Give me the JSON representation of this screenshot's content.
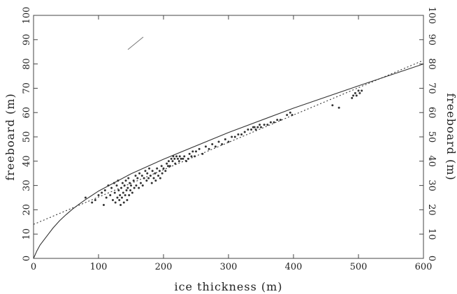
{
  "chart_data": {
    "type": "scatter",
    "title": "",
    "xlabel": "ice thickness (m)",
    "ylabel": "freeboard (m)",
    "ylabel_right": "freeboard (m)",
    "xlim": [
      0,
      600
    ],
    "ylim": [
      0,
      100
    ],
    "x_ticks": [
      0,
      100,
      200,
      300,
      400,
      500,
      600
    ],
    "y_ticks": [
      0,
      10,
      20,
      30,
      40,
      50,
      60,
      70,
      80,
      90,
      100
    ],
    "grid": false,
    "legend": "none",
    "series": [
      {
        "style": "scatter",
        "color": "#333333",
        "points": [
          [
            80,
            25
          ],
          [
            90,
            23
          ],
          [
            95,
            24
          ],
          [
            100,
            26
          ],
          [
            105,
            27
          ],
          [
            108,
            22
          ],
          [
            110,
            28
          ],
          [
            112,
            25
          ],
          [
            115,
            30
          ],
          [
            118,
            26
          ],
          [
            120,
            29
          ],
          [
            122,
            24
          ],
          [
            124,
            31
          ],
          [
            125,
            27
          ],
          [
            126,
            23
          ],
          [
            128,
            30
          ],
          [
            129,
            25
          ],
          [
            130,
            32
          ],
          [
            131,
            28
          ],
          [
            132,
            24
          ],
          [
            133,
            26
          ],
          [
            134,
            22
          ],
          [
            135,
            29
          ],
          [
            136,
            25
          ],
          [
            137,
            31
          ],
          [
            138,
            27
          ],
          [
            139,
            23
          ],
          [
            140,
            30
          ],
          [
            141,
            26
          ],
          [
            142,
            32
          ],
          [
            143,
            28
          ],
          [
            144,
            24
          ],
          [
            145,
            29
          ],
          [
            146,
            33
          ],
          [
            147,
            26
          ],
          [
            148,
            31
          ],
          [
            149,
            28
          ],
          [
            150,
            30
          ],
          [
            152,
            27
          ],
          [
            154,
            32
          ],
          [
            155,
            29
          ],
          [
            157,
            34
          ],
          [
            158,
            30
          ],
          [
            160,
            33
          ],
          [
            162,
            29
          ],
          [
            163,
            35
          ],
          [
            165,
            31
          ],
          [
            167,
            34
          ],
          [
            168,
            30
          ],
          [
            170,
            33
          ],
          [
            172,
            36
          ],
          [
            174,
            32
          ],
          [
            175,
            35
          ],
          [
            177,
            33
          ],
          [
            178,
            37
          ],
          [
            180,
            34
          ],
          [
            182,
            31
          ],
          [
            183,
            36
          ],
          [
            185,
            33
          ],
          [
            187,
            35
          ],
          [
            188,
            32
          ],
          [
            190,
            37
          ],
          [
            192,
            34
          ],
          [
            194,
            36
          ],
          [
            195,
            33
          ],
          [
            197,
            38
          ],
          [
            198,
            35
          ],
          [
            200,
            37
          ],
          [
            203,
            36
          ],
          [
            205,
            39
          ],
          [
            207,
            38
          ],
          [
            208,
            40
          ],
          [
            210,
            38
          ],
          [
            212,
            41
          ],
          [
            214,
            40
          ],
          [
            215,
            42
          ],
          [
            217,
            41
          ],
          [
            218,
            39
          ],
          [
            220,
            42
          ],
          [
            222,
            41
          ],
          [
            224,
            40
          ],
          [
            225,
            42
          ],
          [
            227,
            41
          ],
          [
            230,
            41
          ],
          [
            232,
            42
          ],
          [
            235,
            40
          ],
          [
            238,
            41
          ],
          [
            240,
            43
          ],
          [
            243,
            42
          ],
          [
            245,
            44
          ],
          [
            248,
            42
          ],
          [
            250,
            44
          ],
          [
            255,
            45
          ],
          [
            260,
            43
          ],
          [
            265,
            46
          ],
          [
            270,
            45
          ],
          [
            275,
            47
          ],
          [
            280,
            46
          ],
          [
            285,
            48
          ],
          [
            290,
            47
          ],
          [
            295,
            49
          ],
          [
            300,
            48
          ],
          [
            305,
            50
          ],
          [
            310,
            50
          ],
          [
            315,
            51
          ],
          [
            320,
            51
          ],
          [
            325,
            52
          ],
          [
            330,
            53
          ],
          [
            335,
            53
          ],
          [
            338,
            54
          ],
          [
            340,
            54
          ],
          [
            342,
            53
          ],
          [
            345,
            54
          ],
          [
            348,
            55
          ],
          [
            350,
            54
          ],
          [
            355,
            55
          ],
          [
            360,
            55
          ],
          [
            365,
            56
          ],
          [
            370,
            56
          ],
          [
            375,
            57
          ],
          [
            380,
            57
          ],
          [
            390,
            59
          ],
          [
            395,
            60
          ],
          [
            398,
            59
          ],
          [
            460,
            63
          ],
          [
            470,
            62
          ],
          [
            490,
            66
          ],
          [
            492,
            67
          ],
          [
            495,
            68
          ],
          [
            497,
            67
          ],
          [
            500,
            69
          ],
          [
            502,
            68
          ],
          [
            505,
            69
          ]
        ]
      },
      {
        "style": "solid-line",
        "color": "#333333",
        "points": [
          [
            0,
            0
          ],
          [
            5,
            3
          ],
          [
            10,
            5.5
          ],
          [
            20,
            9
          ],
          [
            30,
            12.5
          ],
          [
            40,
            15.5
          ],
          [
            50,
            18
          ],
          [
            60,
            20.3
          ],
          [
            70,
            22.3
          ],
          [
            80,
            24.2
          ],
          [
            100,
            27.7
          ],
          [
            150,
            34.8
          ],
          [
            200,
            40.8
          ],
          [
            300,
            51.8
          ],
          [
            400,
            61.8
          ],
          [
            500,
            71
          ],
          [
            600,
            80
          ]
        ]
      },
      {
        "style": "dotted-line",
        "color": "#333333",
        "points": [
          [
            0,
            14
          ],
          [
            600,
            81.5
          ]
        ]
      }
    ],
    "annotations": [
      {
        "type": "line",
        "x1": 183,
        "y1": 71,
        "x2": 205,
        "y2": 53
      }
    ]
  }
}
